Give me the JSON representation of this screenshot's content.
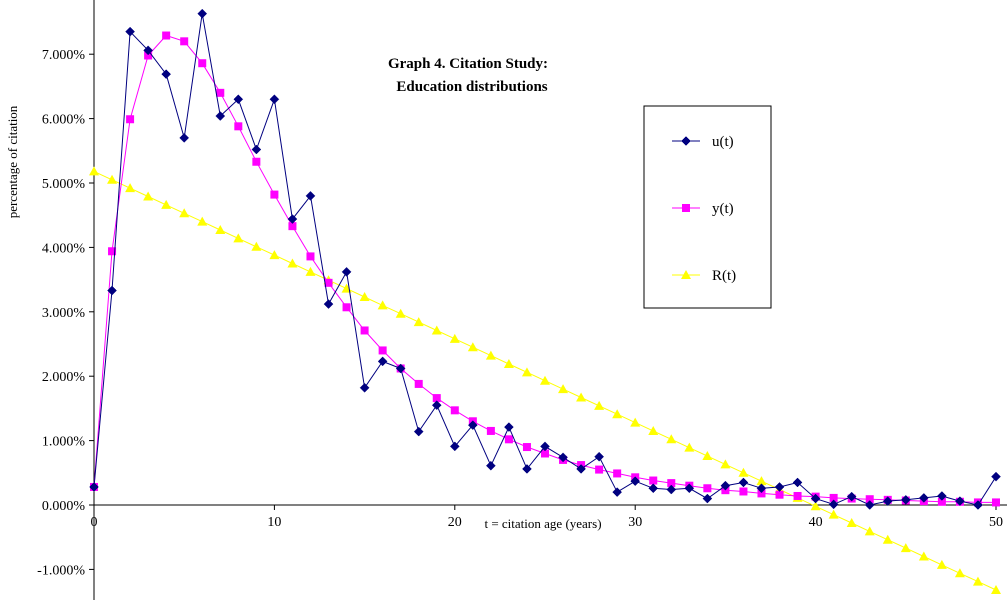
{
  "chart_data": {
    "type": "line",
    "title": "Graph 4.  Citation Study:",
    "subtitle": "Education distributions",
    "xlabel": "t = citation age (years)",
    "ylabel": "percentage of citation",
    "xlim": [
      0,
      50
    ],
    "ylim": [
      -1.5,
      7.6
    ],
    "x_ticks": [
      "0",
      "10",
      "20",
      "30",
      "40",
      "50"
    ],
    "y_ticks": [
      "-1.000%",
      "0.000%",
      "1.000%",
      "2.000%",
      "3.000%",
      "4.000%",
      "5.000%",
      "6.000%",
      "7.000%"
    ],
    "grid": false,
    "legend_position": "right",
    "x": [
      0,
      1,
      2,
      3,
      4,
      5,
      6,
      7,
      8,
      9,
      10,
      11,
      12,
      13,
      14,
      15,
      16,
      17,
      18,
      19,
      20,
      21,
      22,
      23,
      24,
      25,
      26,
      27,
      28,
      29,
      30,
      31,
      32,
      33,
      34,
      35,
      36,
      37,
      38,
      39,
      40,
      41,
      42,
      43,
      44,
      45,
      46,
      47,
      48,
      49,
      50
    ],
    "series": [
      {
        "name": "u(t)",
        "color": "#000080",
        "marker": "diamond",
        "values": [
          0.28,
          3.33,
          7.35,
          7.06,
          6.69,
          5.7,
          7.63,
          6.04,
          6.3,
          5.52,
          6.3,
          4.44,
          4.8,
          3.12,
          3.62,
          1.82,
          2.23,
          2.12,
          1.14,
          1.55,
          0.91,
          1.24,
          0.61,
          1.21,
          0.56,
          0.91,
          0.74,
          0.56,
          0.75,
          0.2,
          0.37,
          0.26,
          0.24,
          0.26,
          0.1,
          0.3,
          0.35,
          0.26,
          0.28,
          0.35,
          0.1,
          0.01,
          0.13,
          0.0,
          0.06,
          0.08,
          0.11,
          0.14,
          0.06,
          0.0,
          0.44
        ]
      },
      {
        "name": "y(t)",
        "color": "#FF00FF",
        "marker": "square",
        "values": [
          0.28,
          3.94,
          5.99,
          6.98,
          7.29,
          7.2,
          6.86,
          6.4,
          5.88,
          5.33,
          4.82,
          4.33,
          3.86,
          3.45,
          3.07,
          2.71,
          2.4,
          2.12,
          1.88,
          1.66,
          1.47,
          1.3,
          1.15,
          1.02,
          0.9,
          0.8,
          0.7,
          0.62,
          0.55,
          0.49,
          0.43,
          0.38,
          0.34,
          0.3,
          0.26,
          0.23,
          0.21,
          0.18,
          0.16,
          0.14,
          0.13,
          0.11,
          0.1,
          0.09,
          0.08,
          0.07,
          0.06,
          0.05,
          0.05,
          0.04,
          0.04
        ]
      },
      {
        "name": "R(t)",
        "color": "#FFFF00",
        "marker": "triangle",
        "values": [
          5.18,
          5.05,
          4.92,
          4.79,
          4.66,
          4.53,
          4.4,
          4.27,
          4.14,
          4.01,
          3.88,
          3.75,
          3.62,
          3.49,
          3.36,
          3.23,
          3.1,
          2.97,
          2.84,
          2.71,
          2.58,
          2.45,
          2.32,
          2.19,
          2.06,
          1.93,
          1.8,
          1.67,
          1.54,
          1.41,
          1.28,
          1.15,
          1.02,
          0.89,
          0.76,
          0.63,
          0.5,
          0.37,
          0.24,
          0.11,
          -0.02,
          -0.15,
          -0.28,
          -0.41,
          -0.54,
          -0.67,
          -0.8,
          -0.93,
          -1.06,
          -1.19,
          -1.32
        ]
      }
    ]
  }
}
